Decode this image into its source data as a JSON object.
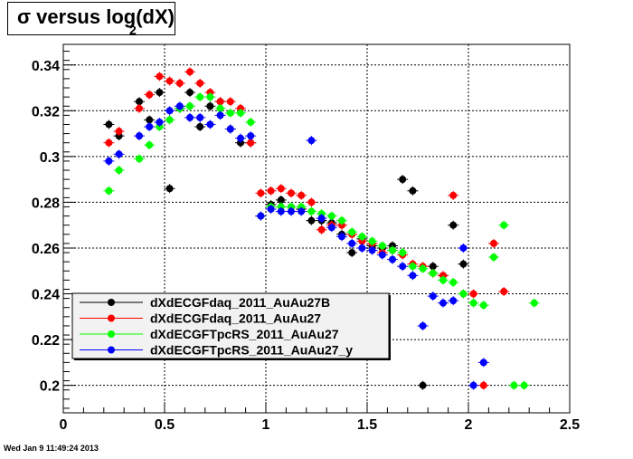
{
  "title": {
    "main": "σ versus log(dX)",
    "subscript": "2"
  },
  "footer": "Wed Jan  9 11:49:24 2013",
  "chart_data": {
    "type": "scatter",
    "xlim": [
      0,
      2.5
    ],
    "ylim": [
      0.188,
      0.349
    ],
    "x_ticks": [
      0,
      0.5,
      1,
      1.5,
      2,
      2.5
    ],
    "x_tick_labels": [
      "0",
      "0.5",
      "1",
      "1.5",
      "2",
      "2.5"
    ],
    "y_ticks": [
      0.2,
      0.22,
      0.24,
      0.26,
      0.28,
      0.3,
      0.32,
      0.34
    ],
    "y_tick_labels": [
      "0.2",
      "0.22",
      "0.24",
      "0.26",
      "0.28",
      "0.3",
      "0.32",
      "0.34"
    ],
    "grid": true,
    "legend_position": "lower-left",
    "series": [
      {
        "name": "dXdECGFdaq_2011_AuAu27B",
        "color": "#000000",
        "points": [
          [
            0.225,
            0.314
          ],
          [
            0.275,
            0.309
          ],
          [
            0.375,
            0.324
          ],
          [
            0.425,
            0.316
          ],
          [
            0.475,
            0.328
          ],
          [
            0.525,
            0.286
          ],
          [
            0.575,
            0.321
          ],
          [
            0.625,
            0.328
          ],
          [
            0.675,
            0.313
          ],
          [
            0.725,
            0.322
          ],
          [
            0.775,
            0.324
          ],
          [
            0.825,
            0.312
          ],
          [
            0.875,
            0.306
          ],
          [
            0.925,
            0.306
          ],
          [
            0.975,
            0.274
          ],
          [
            1.025,
            0.279
          ],
          [
            1.075,
            0.281
          ],
          [
            1.125,
            0.278
          ],
          [
            1.175,
            0.277
          ],
          [
            1.225,
            0.272
          ],
          [
            1.275,
            0.272
          ],
          [
            1.325,
            0.271
          ],
          [
            1.375,
            0.266
          ],
          [
            1.425,
            0.258
          ],
          [
            1.475,
            0.264
          ],
          [
            1.525,
            0.261
          ],
          [
            1.575,
            0.26
          ],
          [
            1.625,
            0.261
          ],
          [
            1.675,
            0.29
          ],
          [
            1.725,
            0.285
          ],
          [
            1.775,
            0.2
          ],
          [
            1.825,
            0.252
          ],
          [
            1.875,
            0.248
          ],
          [
            1.925,
            0.27
          ],
          [
            1.975,
            0.253
          ]
        ]
      },
      {
        "name": "dXdECGFdaq_2011_AuAu27",
        "color": "#ff0000",
        "points": [
          [
            0.225,
            0.306
          ],
          [
            0.275,
            0.311
          ],
          [
            0.375,
            0.321
          ],
          [
            0.425,
            0.327
          ],
          [
            0.475,
            0.335
          ],
          [
            0.525,
            0.333
          ],
          [
            0.575,
            0.332
          ],
          [
            0.625,
            0.337
          ],
          [
            0.675,
            0.332
          ],
          [
            0.725,
            0.328
          ],
          [
            0.775,
            0.324
          ],
          [
            0.825,
            0.324
          ],
          [
            0.875,
            0.321
          ],
          [
            0.925,
            0.306
          ],
          [
            0.975,
            0.284
          ],
          [
            1.025,
            0.285
          ],
          [
            1.075,
            0.286
          ],
          [
            1.125,
            0.284
          ],
          [
            1.175,
            0.283
          ],
          [
            1.225,
            0.28
          ],
          [
            1.275,
            0.268
          ],
          [
            1.325,
            0.27
          ],
          [
            1.375,
            0.27
          ],
          [
            1.425,
            0.266
          ],
          [
            1.475,
            0.263
          ],
          [
            1.525,
            0.262
          ],
          [
            1.575,
            0.258
          ],
          [
            1.625,
            0.259
          ],
          [
            1.675,
            0.257
          ],
          [
            1.725,
            0.253
          ],
          [
            1.775,
            0.252
          ],
          [
            1.825,
            0.249
          ],
          [
            1.875,
            0.248
          ],
          [
            1.925,
            0.283
          ],
          [
            1.975,
            0.24
          ],
          [
            2.025,
            0.24
          ],
          [
            2.075,
            0.2
          ],
          [
            2.125,
            0.262
          ],
          [
            2.175,
            0.241
          ]
        ]
      },
      {
        "name": "dXdECGFTpcRS_2011_AuAu27",
        "color": "#00ff00",
        "points": [
          [
            0.225,
            0.285
          ],
          [
            0.275,
            0.294
          ],
          [
            0.375,
            0.299
          ],
          [
            0.425,
            0.305
          ],
          [
            0.475,
            0.313
          ],
          [
            0.525,
            0.316
          ],
          [
            0.575,
            0.321
          ],
          [
            0.625,
            0.322
          ],
          [
            0.675,
            0.326
          ],
          [
            0.725,
            0.326
          ],
          [
            0.775,
            0.321
          ],
          [
            0.825,
            0.319
          ],
          [
            0.875,
            0.319
          ],
          [
            0.925,
            0.315
          ],
          [
            0.975,
            0.274
          ],
          [
            1.025,
            0.278
          ],
          [
            1.075,
            0.278
          ],
          [
            1.125,
            0.278
          ],
          [
            1.175,
            0.278
          ],
          [
            1.225,
            0.276
          ],
          [
            1.275,
            0.275
          ],
          [
            1.325,
            0.274
          ],
          [
            1.375,
            0.272
          ],
          [
            1.425,
            0.267
          ],
          [
            1.475,
            0.265
          ],
          [
            1.525,
            0.263
          ],
          [
            1.575,
            0.261
          ],
          [
            1.625,
            0.259
          ],
          [
            1.675,
            0.258
          ],
          [
            1.725,
            0.252
          ],
          [
            1.775,
            0.251
          ],
          [
            1.825,
            0.249
          ],
          [
            1.875,
            0.246
          ],
          [
            1.925,
            0.245
          ],
          [
            1.975,
            0.24
          ],
          [
            2.025,
            0.236
          ],
          [
            2.075,
            0.235
          ],
          [
            2.125,
            0.256
          ],
          [
            2.175,
            0.27
          ],
          [
            2.225,
            0.2
          ],
          [
            2.275,
            0.2
          ],
          [
            2.325,
            0.236
          ]
        ]
      },
      {
        "name": "dXdECGFTpcRS_2011_AuAu27_y",
        "color": "#0000ff",
        "points": [
          [
            0.225,
            0.298
          ],
          [
            0.275,
            0.301
          ],
          [
            0.375,
            0.309
          ],
          [
            0.425,
            0.313
          ],
          [
            0.475,
            0.315
          ],
          [
            0.525,
            0.32
          ],
          [
            0.575,
            0.322
          ],
          [
            0.625,
            0.317
          ],
          [
            0.675,
            0.317
          ],
          [
            0.725,
            0.314
          ],
          [
            0.775,
            0.318
          ],
          [
            0.825,
            0.312
          ],
          [
            0.875,
            0.308
          ],
          [
            0.925,
            0.309
          ],
          [
            0.975,
            0.274
          ],
          [
            1.025,
            0.277
          ],
          [
            1.075,
            0.276
          ],
          [
            1.125,
            0.276
          ],
          [
            1.175,
            0.276
          ],
          [
            1.225,
            0.307
          ],
          [
            1.275,
            0.273
          ],
          [
            1.325,
            0.269
          ],
          [
            1.375,
            0.265
          ],
          [
            1.425,
            0.262
          ],
          [
            1.475,
            0.26
          ],
          [
            1.525,
            0.259
          ],
          [
            1.575,
            0.257
          ],
          [
            1.625,
            0.255
          ],
          [
            1.675,
            0.252
          ],
          [
            1.725,
            0.248
          ],
          [
            1.775,
            0.226
          ],
          [
            1.825,
            0.239
          ],
          [
            1.875,
            0.236
          ],
          [
            1.925,
            0.237
          ],
          [
            1.975,
            0.26
          ],
          [
            2.025,
            0.2
          ],
          [
            2.075,
            0.21
          ]
        ]
      }
    ]
  }
}
